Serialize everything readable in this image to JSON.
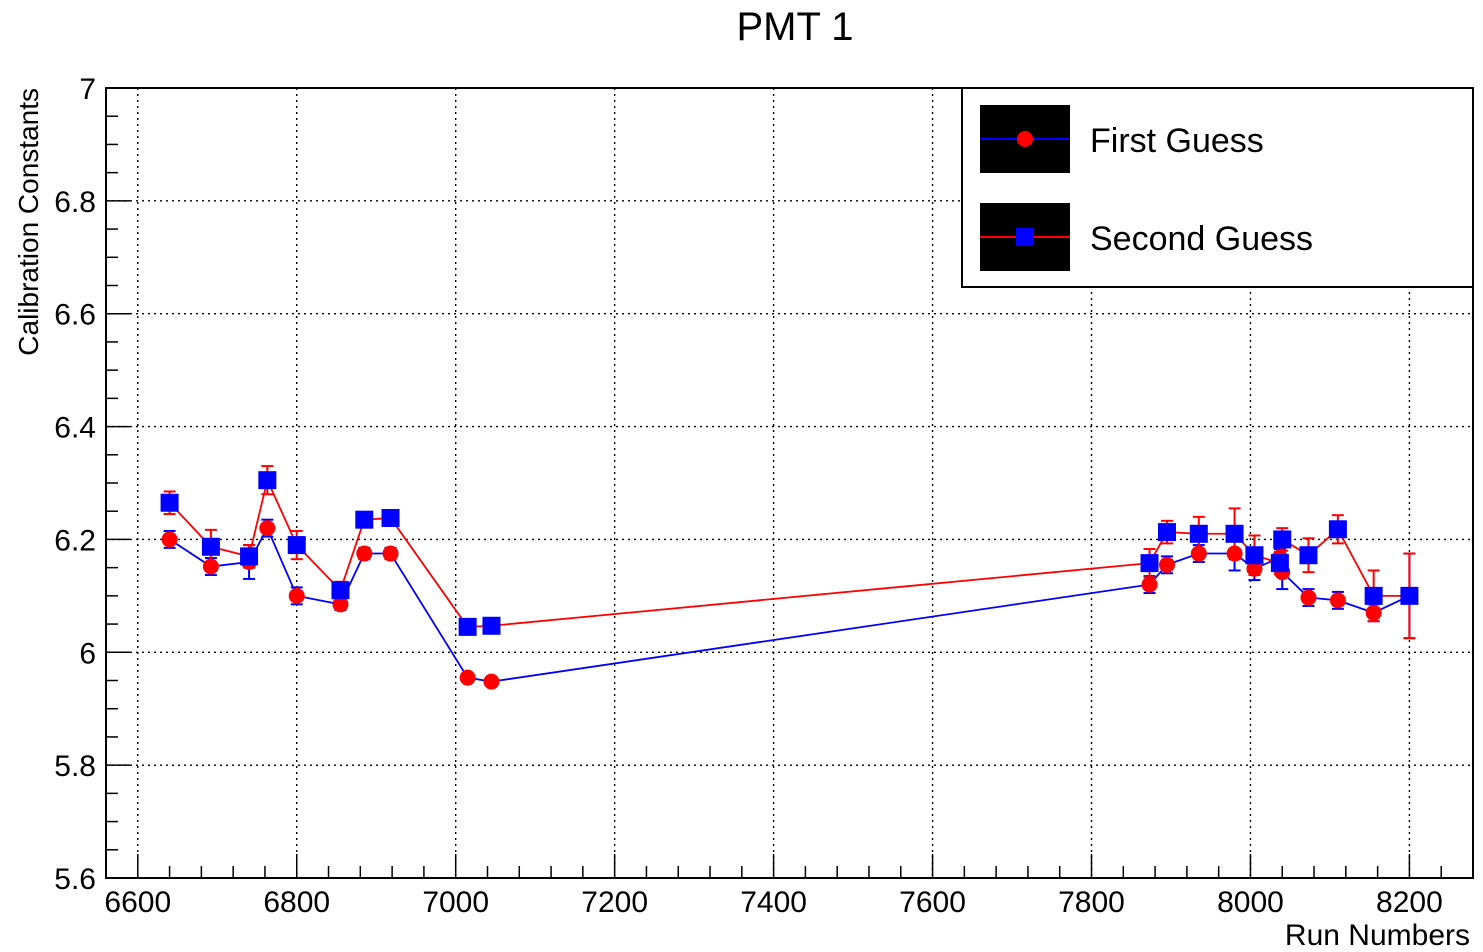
{
  "chart_data": {
    "type": "line",
    "title": "PMT 1",
    "xlabel": "Run Numbers",
    "ylabel": "Calibration Constants",
    "xlim": [
      6560,
      8280
    ],
    "ylim": [
      5.6,
      7.0
    ],
    "xticks": [
      6600,
      6800,
      7000,
      7200,
      7400,
      7600,
      7800,
      8000,
      8200
    ],
    "yticks": [
      5.6,
      5.8,
      6,
      6.2,
      6.4,
      6.6,
      6.8,
      7
    ],
    "grid": true,
    "legend_position": "top-right",
    "series": [
      {
        "name": "First Guess",
        "marker": "circle",
        "marker_color": "#ff0000",
        "line_color": "#0000ff",
        "points": [
          {
            "x": 6640,
            "y": 6.2,
            "err": 0.015
          },
          {
            "x": 6692,
            "y": 6.152,
            "err": 0.015
          },
          {
            "x": 6740,
            "y": 6.16,
            "err": 0.03
          },
          {
            "x": 6763,
            "y": 6.22,
            "err": 0.015
          },
          {
            "x": 6800,
            "y": 6.1,
            "err": 0.015
          },
          {
            "x": 6855,
            "y": 6.085,
            "err": 0.01
          },
          {
            "x": 6885,
            "y": 6.175,
            "err": 0.01
          },
          {
            "x": 6918,
            "y": 6.175,
            "err": 0.01
          },
          {
            "x": 7015,
            "y": 5.955,
            "err": 0.005
          },
          {
            "x": 7045,
            "y": 5.948,
            "err": 0.005
          },
          {
            "x": 7873,
            "y": 6.12,
            "err": 0.015
          },
          {
            "x": 7895,
            "y": 6.155,
            "err": 0.015
          },
          {
            "x": 7935,
            "y": 6.175,
            "err": 0.015
          },
          {
            "x": 7980,
            "y": 6.175,
            "err": 0.03
          },
          {
            "x": 8005,
            "y": 6.148,
            "err": 0.02
          },
          {
            "x": 8037,
            "y": 6.168,
            "err": 0.015
          },
          {
            "x": 8040,
            "y": 6.142,
            "err": 0.03
          },
          {
            "x": 8073,
            "y": 6.097,
            "err": 0.015
          },
          {
            "x": 8110,
            "y": 6.092,
            "err": 0.015
          },
          {
            "x": 8155,
            "y": 6.07,
            "err": 0.015
          },
          {
            "x": 8200,
            "y": 6.1,
            "err": 0.075
          }
        ]
      },
      {
        "name": "Second Guess",
        "marker": "square",
        "marker_color": "#0000ff",
        "line_color": "#ff0000",
        "points": [
          {
            "x": 6640,
            "y": 6.265,
            "err": 0.02
          },
          {
            "x": 6692,
            "y": 6.187,
            "err": 0.03
          },
          {
            "x": 6740,
            "y": 6.17,
            "err": 0.02
          },
          {
            "x": 6763,
            "y": 6.305,
            "err": 0.025
          },
          {
            "x": 6800,
            "y": 6.19,
            "err": 0.025
          },
          {
            "x": 6855,
            "y": 6.11,
            "err": 0.015
          },
          {
            "x": 6885,
            "y": 6.235,
            "err": 0.01
          },
          {
            "x": 6918,
            "y": 6.238,
            "err": 0.01
          },
          {
            "x": 7015,
            "y": 6.045,
            "err": 0.005
          },
          {
            "x": 7045,
            "y": 6.047,
            "err": 0.005
          },
          {
            "x": 7873,
            "y": 6.158,
            "err": 0.025
          },
          {
            "x": 7895,
            "y": 6.213,
            "err": 0.02
          },
          {
            "x": 7935,
            "y": 6.21,
            "err": 0.03
          },
          {
            "x": 7980,
            "y": 6.21,
            "err": 0.045
          },
          {
            "x": 8005,
            "y": 6.172,
            "err": 0.035
          },
          {
            "x": 8037,
            "y": 6.158,
            "err": 0.02
          },
          {
            "x": 8040,
            "y": 6.2,
            "err": 0.02
          },
          {
            "x": 8073,
            "y": 6.172,
            "err": 0.03
          },
          {
            "x": 8110,
            "y": 6.218,
            "err": 0.025
          },
          {
            "x": 8155,
            "y": 6.1,
            "err": 0.045
          },
          {
            "x": 8200,
            "y": 6.1,
            "err": 0.075
          }
        ]
      }
    ]
  }
}
